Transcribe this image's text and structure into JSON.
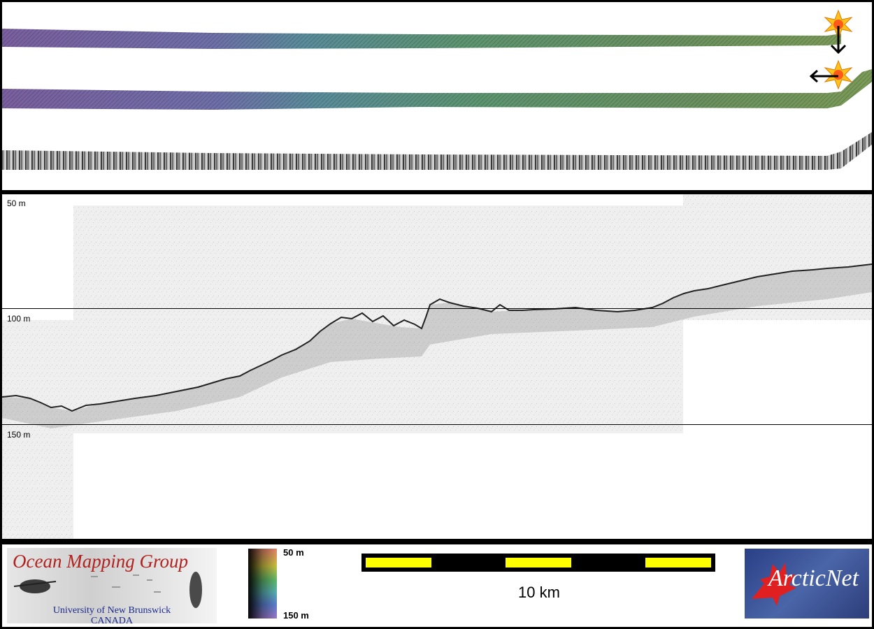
{
  "profile": {
    "depth_labels": [
      "50 m",
      "100 m",
      "150 m"
    ]
  },
  "footer": {
    "omg": {
      "title": "Ocean Mapping Group",
      "university": "University of New Brunswick",
      "country": "CANADA"
    },
    "colorbar": {
      "top_label": "50 m",
      "bottom_label": "150 m"
    },
    "scalebar": {
      "label": "10 km"
    },
    "arcticnet": {
      "name": "ArcticNet"
    }
  },
  "icons": [
    "sun-marker-icon",
    "arrow-down-icon",
    "arrow-left-icon",
    "maple-leaf-icon"
  ],
  "colors": {
    "scale_yellow": "#ffff00",
    "logo_red": "#b0221e",
    "logo_blue": "#1a2a8a",
    "arcticnet_bg": "#2a3f86"
  }
}
